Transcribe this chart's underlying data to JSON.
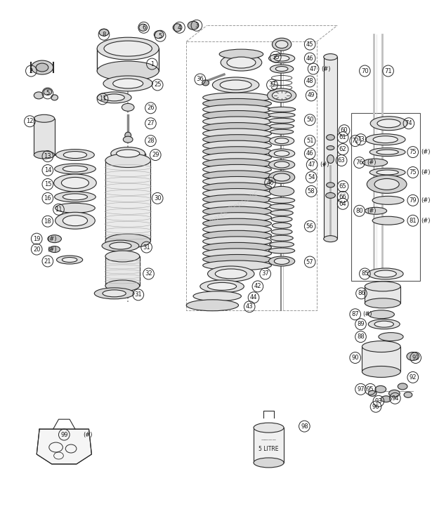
{
  "bg": "#ffffff",
  "lc": "#2a2a2a",
  "tc": "#1a1a1a",
  "watermark_color": "#bbbbbb",
  "fig_w": 6.15,
  "fig_h": 7.52,
  "dpi": 100
}
